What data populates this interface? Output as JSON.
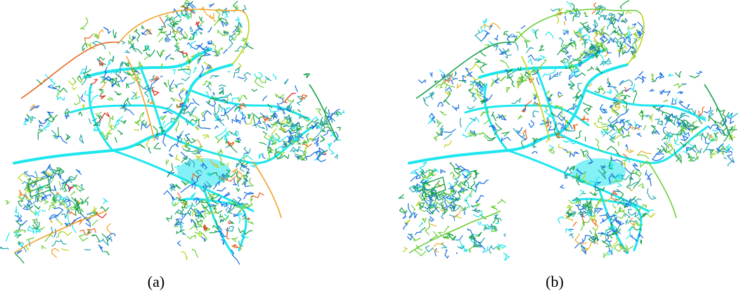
{
  "figure": {
    "panels": [
      {
        "id": "a",
        "caption": "(a)",
        "colors": [
          "#1ee6ee",
          "#1a6ee0",
          "#2aa8b0",
          "#16a04a",
          "#6ccf3a",
          "#b9d41e",
          "#f0a32a",
          "#e8641e",
          "#e0281e"
        ]
      },
      {
        "id": "b",
        "caption": "(b)",
        "colors": [
          "#1ee6ee",
          "#1a6ee0",
          "#2aa8b0",
          "#16a04a",
          "#6ccf3a",
          "#b9d41e",
          "#e8b02a",
          "#e8641e"
        ]
      }
    ]
  }
}
